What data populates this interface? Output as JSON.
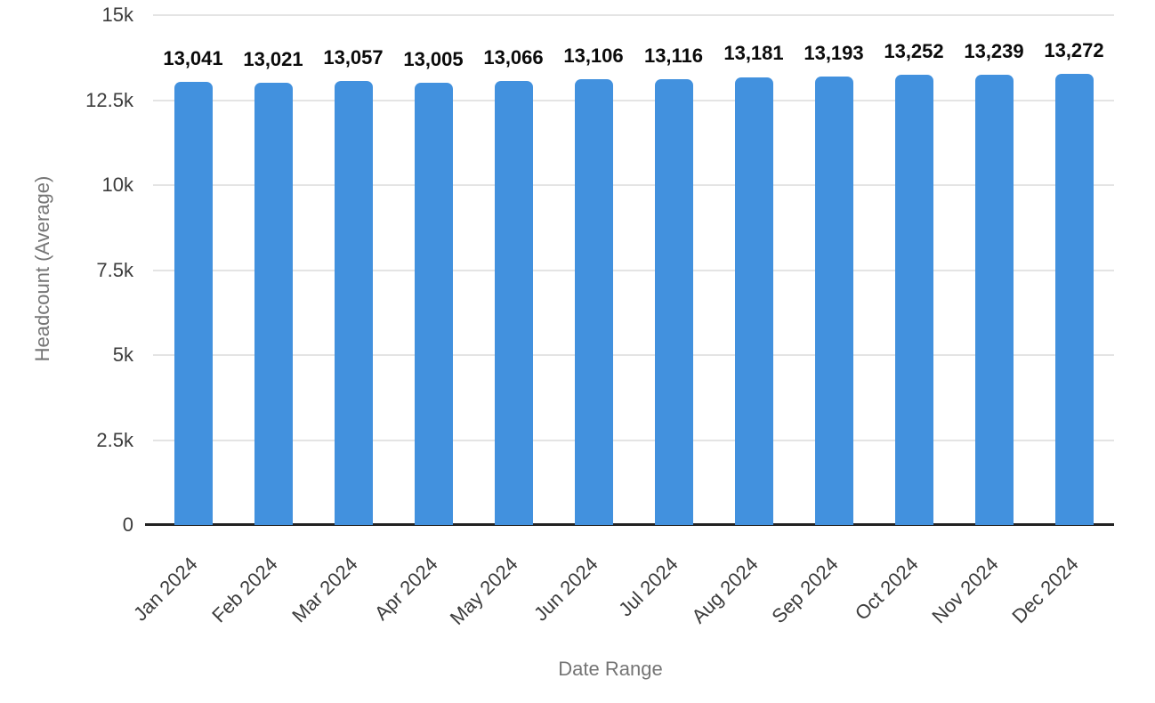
{
  "chart_data": {
    "type": "bar",
    "title": "",
    "xlabel": "Date Range",
    "ylabel": "Headcount (Average)",
    "categories": [
      "Jan 2024",
      "Feb 2024",
      "Mar 2024",
      "Apr 2024",
      "May 2024",
      "Jun 2024",
      "Jul 2024",
      "Aug 2024",
      "Sep 2024",
      "Oct 2024",
      "Nov 2024",
      "Dec 2024"
    ],
    "values": [
      13041,
      13021,
      13057,
      13005,
      13066,
      13106,
      13116,
      13181,
      13193,
      13252,
      13239,
      13272
    ],
    "value_labels": [
      "13,041",
      "13,021",
      "13,057",
      "13,005",
      "13,066",
      "13,106",
      "13,116",
      "13,181",
      "13,193",
      "13,252",
      "13,239",
      "13,272"
    ],
    "ylim": [
      0,
      15000
    ],
    "yticks": [
      0,
      2500,
      5000,
      7500,
      10000,
      12500,
      15000
    ],
    "ytick_labels": [
      "0",
      "2.5k",
      "5k",
      "7.5k",
      "10k",
      "12.5k",
      "15k"
    ],
    "grid": true,
    "legend": "none",
    "colors": {
      "bar": "#4291DE",
      "gridline": "#E4E4E4",
      "axis_line": "#212121",
      "tick_label": "#3C3C3C",
      "axis_title": "#757575",
      "data_label": "#0B0B0B",
      "background": "#FFFFFF"
    }
  }
}
